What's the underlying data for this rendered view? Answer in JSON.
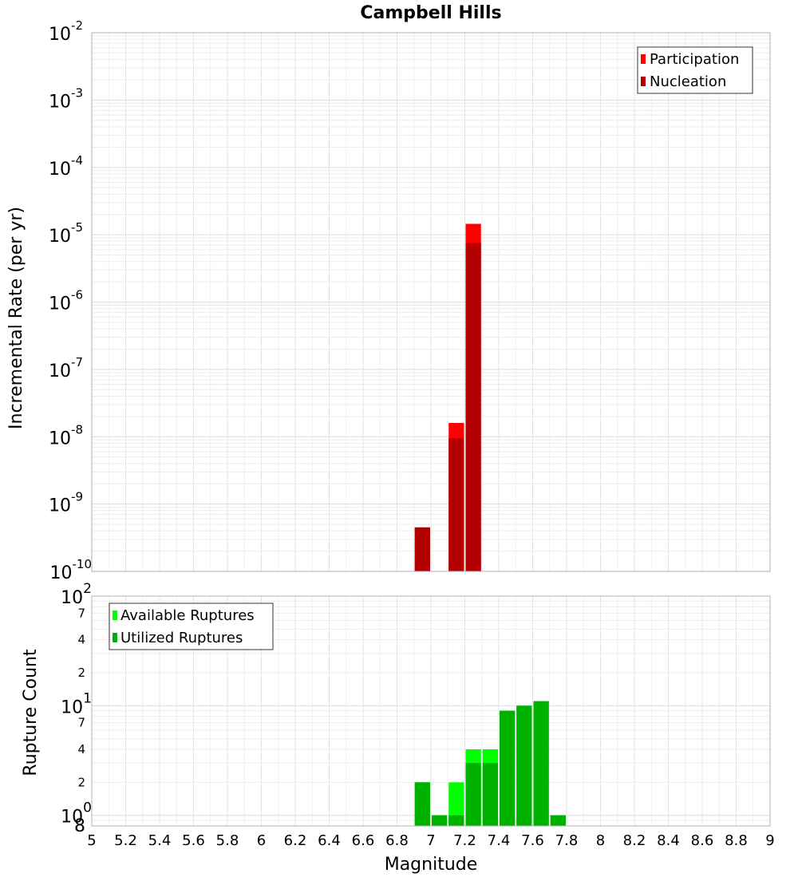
{
  "chart_data": [
    {
      "type": "bar",
      "title": "Campbell Hills",
      "xlabel": "",
      "ylabel": "Incremental Rate (per yr)",
      "yscale": "log",
      "ylim": [
        1e-10,
        0.01
      ],
      "xlim": [
        5,
        9
      ],
      "grid": true,
      "legend_position": "top-right",
      "y_tick_labels": [
        {
          "value": 1e-10,
          "base": "10",
          "exp": "-10"
        },
        {
          "value": 1e-09,
          "base": "10",
          "exp": "-9"
        },
        {
          "value": 1e-08,
          "base": "10",
          "exp": "-8"
        },
        {
          "value": 1e-07,
          "base": "10",
          "exp": "-7"
        },
        {
          "value": 1e-06,
          "base": "10",
          "exp": "-6"
        },
        {
          "value": 1e-05,
          "base": "10",
          "exp": "-5"
        },
        {
          "value": 0.0001,
          "base": "10",
          "exp": "-4"
        },
        {
          "value": 0.001,
          "base": "10",
          "exp": "-3"
        },
        {
          "value": 0.01,
          "base": "10",
          "exp": "-2"
        }
      ],
      "series": [
        {
          "name": "Participation",
          "color": "#ff0000",
          "x": [
            6.95,
            7.15,
            7.25
          ],
          "values": [
            4.5e-10,
            1.6e-08,
            1.45e-05
          ]
        },
        {
          "name": "Nucleation",
          "color": "#b20000",
          "x": [
            6.95,
            7.15,
            7.25
          ],
          "values": [
            4.5e-10,
            9.5e-09,
            7.5e-06
          ]
        }
      ]
    },
    {
      "type": "bar",
      "title": "",
      "xlabel": "Magnitude",
      "ylabel": "Rupture Count",
      "yscale": "log",
      "ylim": [
        0.8,
        100
      ],
      "xlim": [
        5,
        9
      ],
      "grid": true,
      "legend_position": "top-left",
      "x_ticks": [
        "5",
        "5.2",
        "5.4",
        "5.6",
        "5.8",
        "6",
        "6.2",
        "6.4",
        "6.6",
        "6.8",
        "7",
        "7.2",
        "7.4",
        "7.6",
        "7.8",
        "8",
        "8.2",
        "8.4",
        "8.6",
        "8.8",
        "9"
      ],
      "y_major_ticks": [
        {
          "value": 1,
          "base": "10",
          "exp": "0"
        },
        {
          "value": 10,
          "base": "10",
          "exp": "1"
        },
        {
          "value": 100,
          "base": "10",
          "exp": "2"
        }
      ],
      "y_minor_ticks": [
        {
          "value": 2,
          "label": "2"
        },
        {
          "value": 4,
          "label": "4"
        },
        {
          "value": 7,
          "label": "7"
        },
        {
          "value": 20,
          "label": "2"
        },
        {
          "value": 40,
          "label": "4"
        },
        {
          "value": 70,
          "label": "7"
        }
      ],
      "y_bottom_label": "8",
      "series": [
        {
          "name": "Available Ruptures",
          "color": "#00ff00",
          "x": [
            6.95,
            7.05,
            7.15,
            7.25,
            7.35,
            7.45,
            7.55,
            7.65,
            7.75
          ],
          "values": [
            2,
            1,
            2,
            4,
            4,
            9,
            10,
            11,
            1
          ]
        },
        {
          "name": "Utilized Ruptures",
          "color": "#00b200",
          "x": [
            6.95,
            7.05,
            7.15,
            7.25,
            7.35,
            7.45,
            7.55,
            7.65,
            7.75
          ],
          "values": [
            2,
            1,
            1,
            3,
            3,
            9,
            10,
            11,
            1
          ]
        }
      ]
    }
  ]
}
